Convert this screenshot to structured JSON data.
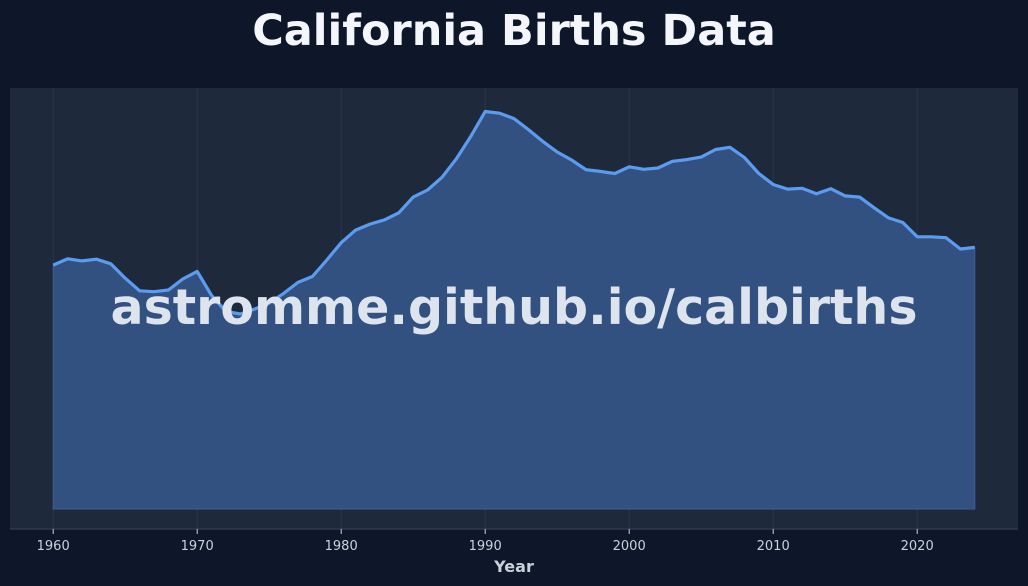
{
  "chart_data": {
    "type": "area",
    "title": "California Births Data",
    "xlabel": "Year",
    "ylabel": "",
    "watermark": "astromme.github.io/calbirths",
    "xlim": [
      1957,
      2027
    ],
    "ylim": [
      0,
      100
    ],
    "x_ticks": [
      1960,
      1970,
      1980,
      1990,
      2000,
      2010,
      2020
    ],
    "y_axis_labels_shown": false,
    "grid": true,
    "colors": {
      "background": "#0e1729",
      "plot_background": "#1e293b",
      "line": "#5b9cf0",
      "fill": "#325180",
      "title": "#f4f6fb",
      "tick_text": "#c9d1dd"
    },
    "series": [
      {
        "x": [
          1960,
          1961,
          1962,
          1963,
          1964,
          1965,
          1966,
          1967,
          1968,
          1969,
          1970,
          1971,
          1972,
          1973,
          1974,
          1975,
          1976,
          1977,
          1978,
          1979,
          1980,
          1981,
          1982,
          1983,
          1984,
          1985,
          1986,
          1987,
          1988,
          1989,
          1990,
          1991,
          1992,
          1993,
          1994,
          1995,
          1996,
          1997,
          1998,
          1999,
          2000,
          2001,
          2002,
          2003,
          2004,
          2005,
          2006,
          2007,
          2008,
          2009,
          2010,
          2011,
          2012,
          2013,
          2014,
          2015,
          2016,
          2017,
          2018,
          2019,
          2020,
          2021,
          2022,
          2023,
          2024
        ],
        "values": [
          57.8,
          59.3,
          58.8,
          59.2,
          58.1,
          54.7,
          51.7,
          51.5,
          51.9,
          54.5,
          56.3,
          50.6,
          46.8,
          46.2,
          47.4,
          48.8,
          51.1,
          53.7,
          55.1,
          59.0,
          63.1,
          66.1,
          67.5,
          68.5,
          70.2,
          73.9,
          75.6,
          78.6,
          83.0,
          88.3,
          94.2,
          93.8,
          92.5,
          89.9,
          87.1,
          84.6,
          82.7,
          80.4,
          80.0,
          79.5,
          81.1,
          80.5,
          80.8,
          82.4,
          82.8,
          83.4,
          85.2,
          85.7,
          83.3,
          79.5,
          76.9,
          75.8,
          76.0,
          74.7,
          75.9,
          74.2,
          73.9,
          71.4,
          69.0,
          67.9,
          64.5,
          64.5,
          64.3,
          61.6,
          62.0
        ]
      }
    ]
  }
}
